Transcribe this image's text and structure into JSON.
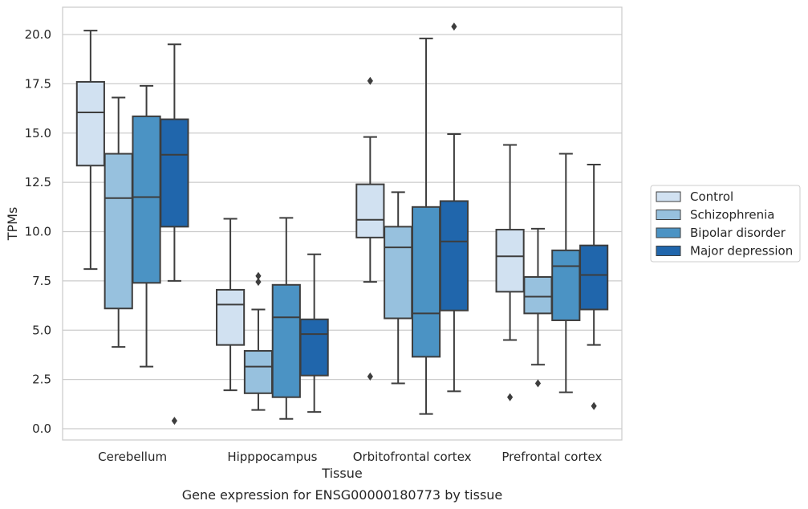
{
  "chart_data": {
    "type": "boxplot",
    "caption": "Gene expression for ENSG00000180773 by tissue",
    "xlabel": "Tissue",
    "ylabel": "TPMs",
    "ylim": [
      -0.5,
      21.4
    ],
    "yticks": [
      0.0,
      2.5,
      5.0,
      7.5,
      10.0,
      12.5,
      15.0,
      17.5,
      20.0
    ],
    "ytick_labels": [
      "0.0",
      "2.5",
      "5.0",
      "7.5",
      "10.0",
      "12.5",
      "15.0",
      "17.5",
      "20.0"
    ],
    "grid": true,
    "legend_position": "right",
    "categories": [
      "Cerebellum",
      "Hipppocampus",
      "Orbitofrontal cortex",
      "Prefrontal cortex"
    ],
    "series": [
      {
        "name": "Control",
        "color": "#d1e1f1",
        "boxes": [
          {
            "min": 8.1,
            "q1": 13.35,
            "median": 16.05,
            "q3": 17.6,
            "max": 20.2,
            "outliers": []
          },
          {
            "min": 1.95,
            "q1": 4.25,
            "median": 6.3,
            "q3": 7.05,
            "max": 10.65,
            "outliers": []
          },
          {
            "min": 7.45,
            "q1": 9.7,
            "median": 10.6,
            "q3": 12.4,
            "max": 14.8,
            "outliers": [
              17.65,
              2.65
            ]
          },
          {
            "min": 4.5,
            "q1": 6.95,
            "median": 8.75,
            "q3": 10.1,
            "max": 14.4,
            "outliers": [
              1.6
            ]
          }
        ]
      },
      {
        "name": "Schizophrenia",
        "color": "#97c1de",
        "boxes": [
          {
            "min": 4.15,
            "q1": 6.1,
            "median": 11.7,
            "q3": 13.95,
            "max": 16.8,
            "outliers": []
          },
          {
            "min": 0.95,
            "q1": 1.8,
            "median": 3.15,
            "q3": 3.95,
            "max": 6.05,
            "outliers": [
              7.75,
              7.45
            ]
          },
          {
            "min": 2.3,
            "q1": 5.6,
            "median": 9.2,
            "q3": 10.25,
            "max": 12.0,
            "outliers": []
          },
          {
            "min": 3.25,
            "q1": 5.85,
            "median": 6.7,
            "q3": 7.7,
            "max": 10.15,
            "outliers": [
              2.3
            ]
          }
        ]
      },
      {
        "name": "Bipolar disorder",
        "color": "#4b93c4",
        "boxes": [
          {
            "min": 3.15,
            "q1": 7.4,
            "median": 11.75,
            "q3": 15.85,
            "max": 17.4,
            "outliers": []
          },
          {
            "min": 0.5,
            "q1": 1.6,
            "median": 5.65,
            "q3": 7.3,
            "max": 10.7,
            "outliers": []
          },
          {
            "min": 0.75,
            "q1": 3.65,
            "median": 5.85,
            "q3": 11.25,
            "max": 19.8,
            "outliers": []
          },
          {
            "min": 1.85,
            "q1": 5.5,
            "median": 8.25,
            "q3": 9.05,
            "max": 13.95,
            "outliers": []
          }
        ]
      },
      {
        "name": "Major depression",
        "color": "#2066ac",
        "boxes": [
          {
            "min": 7.5,
            "q1": 10.25,
            "median": 13.9,
            "q3": 15.7,
            "max": 19.5,
            "outliers": [
              0.4
            ]
          },
          {
            "min": 0.85,
            "q1": 2.7,
            "median": 4.8,
            "q3": 5.55,
            "max": 8.85,
            "outliers": []
          },
          {
            "min": 1.9,
            "q1": 6.0,
            "median": 9.5,
            "q3": 11.55,
            "max": 14.95,
            "outliers": [
              20.4
            ]
          },
          {
            "min": 4.25,
            "q1": 6.05,
            "median": 7.8,
            "q3": 9.3,
            "max": 13.4,
            "outliers": [
              1.15
            ]
          }
        ]
      }
    ]
  }
}
